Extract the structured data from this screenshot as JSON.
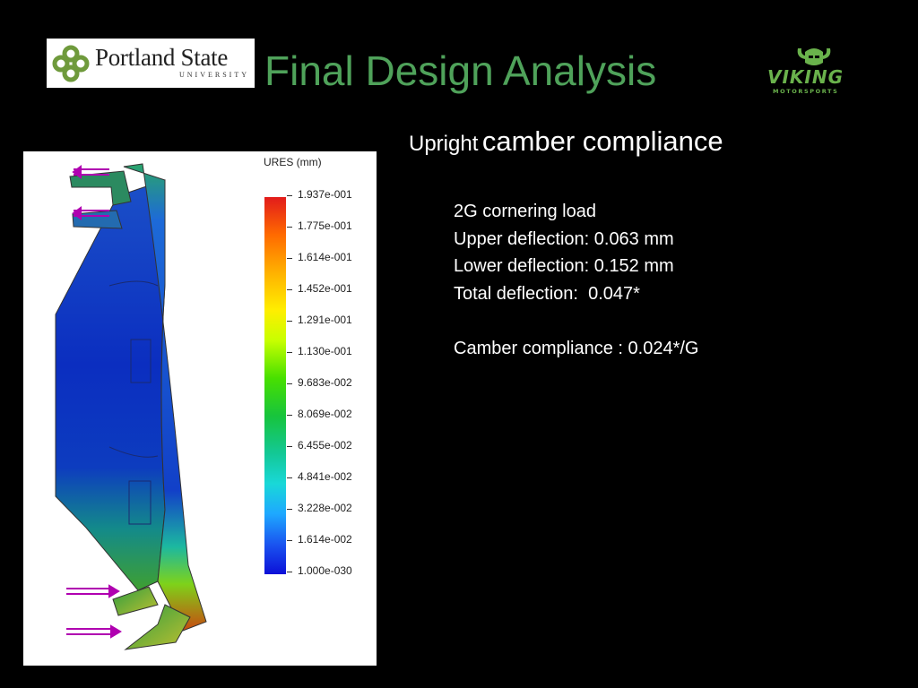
{
  "header": {
    "logo_name": "Portland State",
    "logo_subtitle": "UNIVERSITY",
    "title": "Final Design Analysis",
    "right_logo": {
      "name": "VIKING",
      "subtitle": "MOTORSPORTS"
    }
  },
  "subtitle": {
    "small": "Upright",
    "big": "camber compliance"
  },
  "details": [
    "2G cornering load",
    "Upper deflection: 0.063 mm",
    "Lower deflection: 0.152 mm",
    "Total deflection:  0.047*",
    "",
    "Camber compliance : 0.024*/G"
  ],
  "fea_plot": {
    "legend_title": "URES (mm)",
    "legend_labels": [
      "1.937e-001",
      "1.775e-001",
      "1.614e-001",
      "1.452e-001",
      "1.291e-001",
      "1.130e-001",
      "9.683e-002",
      "8.069e-002",
      "6.455e-002",
      "4.841e-002",
      "3.228e-002",
      "1.614e-002",
      "1.000e-030"
    ]
  },
  "colors": {
    "title": "#4fa25a",
    "viking": "#6ab24c",
    "background": "#000000"
  }
}
